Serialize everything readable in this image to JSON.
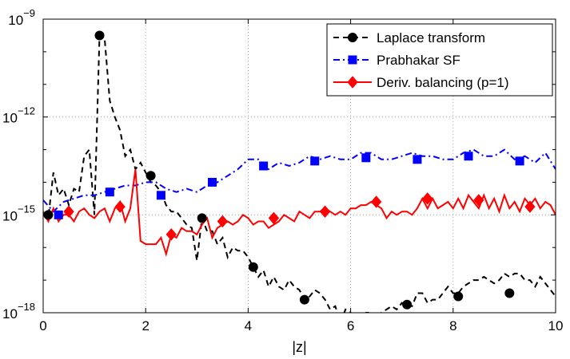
{
  "chart_data": {
    "type": "line",
    "xlabel": "|z|",
    "ylabel": "",
    "xlim": [
      0,
      10
    ],
    "ylim_log10": [
      -18,
      -9
    ],
    "y_scale": "log",
    "x_ticks": [
      0,
      2,
      4,
      6,
      8,
      10
    ],
    "x_tick_labels": [
      "0",
      "2",
      "4",
      "6",
      "8",
      "10"
    ],
    "y_ticks_log10": [
      -18,
      -15,
      -12,
      -9
    ],
    "y_tick_labels": [
      {
        "base": "10",
        "exp": "−18"
      },
      {
        "base": "10",
        "exp": "−15"
      },
      {
        "base": "10",
        "exp": "−12"
      },
      {
        "base": "10",
        "exp": "−9"
      }
    ],
    "grid": true,
    "legend_position": "top-right",
    "series": [
      {
        "name": "Laplace transform",
        "color": "#000000",
        "line_style": "dashed",
        "marker": "circle",
        "x": [
          0.0,
          0.1,
          0.2,
          0.3,
          0.4,
          0.5,
          0.6,
          0.7,
          0.8,
          0.9,
          1.0,
          1.1,
          1.2,
          1.3,
          1.4,
          1.5,
          1.6,
          1.7,
          1.8,
          1.9,
          2.0,
          2.1,
          2.2,
          2.3,
          2.4,
          2.5,
          2.6,
          2.7,
          2.8,
          2.9,
          3.0,
          3.1,
          3.2,
          3.3,
          3.4,
          3.5,
          3.6,
          3.7,
          3.8,
          3.9,
          4.0,
          4.1,
          4.2,
          4.3,
          4.4,
          4.5,
          4.6,
          4.7,
          4.8,
          4.9,
          5.0,
          5.1,
          5.2,
          5.3,
          5.4,
          5.5,
          5.6,
          5.7,
          5.8,
          5.9,
          6.0,
          6.1,
          6.2,
          6.3,
          6.4,
          6.5,
          6.6,
          6.7,
          6.8,
          6.9,
          7.0,
          7.1,
          7.2,
          7.3,
          7.4,
          7.5,
          7.6,
          7.7,
          7.8,
          7.9,
          8.0,
          8.1,
          8.2,
          8.3,
          8.4,
          8.5,
          8.6,
          8.7,
          8.8,
          8.9,
          9.0,
          9.1,
          9.2,
          9.3,
          9.4,
          9.5,
          9.6,
          9.7,
          9.8,
          9.9,
          10.0
        ],
        "y_log10": [
          -15.0,
          -15.1,
          -13.7,
          -14.4,
          -14.2,
          -14.7,
          -14.2,
          -14.3,
          -13.2,
          -13.0,
          -15.0,
          -9.5,
          -9.6,
          -11.5,
          -12.0,
          -12.4,
          -13.2,
          -13.0,
          -13.6,
          -13.4,
          -13.7,
          -14.0,
          -14.1,
          -14.3,
          -14.7,
          -14.9,
          -14.9,
          -15.1,
          -15.3,
          -15.4,
          -16.4,
          -15.1,
          -15.5,
          -15.5,
          -15.9,
          -15.7,
          -16.3,
          -16.0,
          -16.1,
          -16.1,
          -16.3,
          -16.6,
          -16.9,
          -16.7,
          -17.2,
          -16.9,
          -17.2,
          -17.3,
          -17.0,
          -17.2,
          -17.3,
          -17.6,
          -17.5,
          -17.3,
          -17.4,
          -17.6,
          -17.9,
          -17.8,
          -18.3,
          -17.9,
          -18.0,
          -18.1,
          -18.2,
          -18.0,
          -18.0,
          -18.2,
          -18.0,
          -17.9,
          -17.8,
          -17.9,
          -17.7,
          -17.8,
          -17.8,
          -17.4,
          -17.4,
          -17.7,
          -17.6,
          -17.6,
          -17.4,
          -17.2,
          -17.4,
          -17.4,
          -17.2,
          -17.1,
          -17.0,
          -17.0,
          -16.9,
          -17.0,
          -17.1,
          -17.0,
          -16.8,
          -16.9,
          -16.8,
          -16.8,
          -17.0,
          -17.0,
          -17.2,
          -16.9,
          -17.1,
          -17.3,
          -17.5
        ],
        "marker_x": [
          0.1,
          1.1,
          2.1,
          3.1,
          4.1,
          5.1,
          7.1,
          8.1,
          9.1
        ],
        "marker_y_log10": [
          -15.0,
          -9.5,
          -13.8,
          -15.1,
          -16.6,
          -17.6,
          -17.75,
          -17.5,
          -17.4
        ]
      },
      {
        "name": "Prabhakar SF",
        "color": "#0000ff",
        "line_style": "dashdot",
        "marker": "square",
        "x": [
          0.0,
          0.2,
          0.4,
          0.6,
          0.8,
          1.0,
          1.2,
          1.4,
          1.6,
          1.8,
          2.0,
          2.2,
          2.4,
          2.6,
          2.8,
          3.0,
          3.2,
          3.4,
          3.6,
          3.8,
          4.0,
          4.2,
          4.4,
          4.6,
          4.8,
          5.0,
          5.2,
          5.4,
          5.6,
          5.8,
          6.0,
          6.2,
          6.4,
          6.6,
          6.8,
          7.0,
          7.2,
          7.4,
          7.6,
          7.8,
          8.0,
          8.2,
          8.4,
          8.6,
          8.8,
          9.0,
          9.2,
          9.4,
          9.6,
          9.8,
          10.0
        ],
        "y_log10": [
          -14.55,
          -14.9,
          -14.6,
          -14.5,
          -14.4,
          -14.4,
          -14.3,
          -14.2,
          -14.1,
          -14.1,
          -14.0,
          -14.0,
          -14.2,
          -14.3,
          -14.2,
          -14.3,
          -14.1,
          -14.0,
          -13.8,
          -13.6,
          -13.3,
          -13.3,
          -13.6,
          -13.4,
          -13.5,
          -13.4,
          -13.2,
          -13.3,
          -13.2,
          -13.3,
          -13.3,
          -13.1,
          -13.1,
          -13.3,
          -13.3,
          -13.2,
          -13.1,
          -13.2,
          -13.2,
          -13.3,
          -13.3,
          -13.1,
          -13.0,
          -13.2,
          -13.2,
          -13.0,
          -13.3,
          -13.2,
          -13.4,
          -13.1,
          -13.6
        ],
        "marker_x": [
          0.3,
          1.3,
          2.3,
          3.3,
          4.3,
          5.3,
          6.3,
          7.3,
          8.3,
          9.3
        ],
        "marker_y_log10": [
          -15.0,
          -14.3,
          -14.4,
          -14.0,
          -13.5,
          -13.35,
          -13.25,
          -13.3,
          -13.2,
          -13.35
        ]
      },
      {
        "name": "Deriv. balancing (p=1)",
        "color": "#ff0000",
        "line_style": "solid",
        "marker": "diamond",
        "x": [
          0.0,
          0.1,
          0.2,
          0.3,
          0.4,
          0.5,
          0.6,
          0.7,
          0.8,
          0.9,
          1.0,
          1.1,
          1.2,
          1.3,
          1.4,
          1.5,
          1.6,
          1.7,
          1.8,
          1.9,
          2.0,
          2.1,
          2.2,
          2.3,
          2.4,
          2.5,
          2.6,
          2.7,
          2.8,
          2.9,
          3.0,
          3.1,
          3.2,
          3.3,
          3.4,
          3.5,
          3.6,
          3.7,
          3.8,
          3.9,
          4.0,
          4.1,
          4.2,
          4.3,
          4.4,
          4.5,
          4.6,
          4.7,
          4.8,
          4.9,
          5.0,
          5.1,
          5.2,
          5.3,
          5.4,
          5.5,
          5.6,
          5.7,
          5.8,
          5.9,
          6.0,
          6.1,
          6.2,
          6.3,
          6.4,
          6.5,
          6.6,
          6.7,
          6.8,
          6.9,
          7.0,
          7.1,
          7.2,
          7.3,
          7.4,
          7.5,
          7.6,
          7.7,
          7.8,
          7.9,
          8.0,
          8.1,
          8.2,
          8.3,
          8.4,
          8.5,
          8.6,
          8.7,
          8.8,
          8.9,
          9.0,
          9.1,
          9.2,
          9.3,
          9.4,
          9.5,
          9.6,
          9.7,
          9.8,
          9.9,
          10.0
        ],
        "y_log10": [
          -14.9,
          -15.2,
          -14.8,
          -15.2,
          -15.0,
          -15.0,
          -15.2,
          -14.9,
          -14.8,
          -15.0,
          -15.1,
          -14.9,
          -14.8,
          -15.2,
          -14.8,
          -14.6,
          -15.2,
          -14.8,
          -13.6,
          -15.8,
          -15.9,
          -15.9,
          -15.9,
          -15.7,
          -16.2,
          -15.6,
          -15.7,
          -15.4,
          -15.5,
          -15.5,
          -15.6,
          -15.3,
          -15.1,
          -15.7,
          -15.4,
          -15.3,
          -15.2,
          -15.3,
          -15.2,
          -15.0,
          -15.1,
          -15.3,
          -15.2,
          -15.2,
          -15.4,
          -15.3,
          -15.2,
          -15.0,
          -15.1,
          -15.2,
          -14.9,
          -15.0,
          -15.1,
          -14.9,
          -14.9,
          -14.8,
          -14.9,
          -15.0,
          -14.9,
          -15.0,
          -14.8,
          -14.8,
          -14.7,
          -14.7,
          -14.6,
          -14.7,
          -14.8,
          -15.1,
          -14.9,
          -15.0,
          -14.9,
          -14.9,
          -15.0,
          -14.8,
          -14.5,
          -14.8,
          -14.5,
          -14.8,
          -14.7,
          -14.6,
          -14.8,
          -14.5,
          -14.8,
          -14.4,
          -14.6,
          -14.8,
          -14.4,
          -14.8,
          -14.5,
          -14.9,
          -14.4,
          -14.8,
          -14.6,
          -14.9,
          -14.5,
          -14.7,
          -14.5,
          -14.8,
          -14.6,
          -14.7,
          -15.0
        ],
        "marker_x": [
          0.5,
          1.5,
          2.5,
          3.5,
          4.5,
          5.5,
          6.5,
          7.5,
          8.5,
          9.5
        ],
        "marker_y_log10": [
          -14.9,
          -14.75,
          -15.6,
          -15.2,
          -15.1,
          -14.9,
          -14.6,
          -14.5,
          -14.55,
          -14.75
        ]
      }
    ]
  }
}
